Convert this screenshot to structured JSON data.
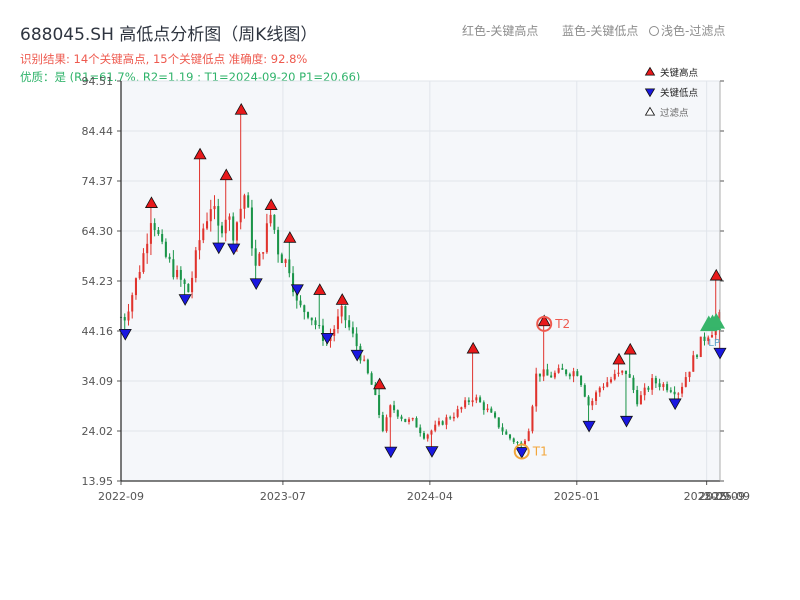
{
  "title": "688045.SH 高低点分析图（周K线图）",
  "header_legend": {
    "red": "红色-关键高点",
    "blue": "蓝色-关键低点",
    "light": "浅色-过滤点"
  },
  "summary": "识别结果: 14个关键高点, 15个关键低点  准确度: 92.8%",
  "quality": "优质：是  (R1=61.7%, R2=1.19 ; T1=2024-09-20 P1=20.66)",
  "legend": {
    "high": "关键高点",
    "low": "关键低点",
    "filtered": "过滤点"
  },
  "colors": {
    "up": "#e0332d",
    "down": "#1a9448",
    "high_marker": "#e8191b",
    "low_marker": "#1a18e0",
    "t2_ring": "#ee5a4f",
    "t1_ring": "#f2a63b",
    "filtered_marker": "#37b56a",
    "plot_bg": "#f5f7fa",
    "grid": "#e1e5eb"
  },
  "chart_data": {
    "type": "candlestick",
    "title": "688045.SH 高低点分析图（周K线图）",
    "y_ticks": [
      13.95,
      24.02,
      34.09,
      44.16,
      54.23,
      64.3,
      74.37,
      84.44,
      94.51
    ],
    "ylim": [
      13.95,
      94.51
    ],
    "x_ticks": [
      "2022-09",
      "2023-07",
      "2024-04",
      "2025-01",
      "2025-09"
    ],
    "x_range": [
      "2022-09-01",
      "2025-09-26"
    ],
    "x_ticks_overlap_labels": [
      "2025-09",
      "2025-09"
    ],
    "grid": true,
    "legend_position": "top-right",
    "price_path": [
      [
        "2022-09-02",
        45
      ],
      [
        "2022-09-23",
        52
      ],
      [
        "2022-10-14",
        60
      ],
      [
        "2022-10-28",
        68
      ],
      [
        "2022-11-18",
        60
      ],
      [
        "2022-12-16",
        55
      ],
      [
        "2023-01-06",
        52
      ],
      [
        "2023-01-27",
        63
      ],
      [
        "2023-02-17",
        70
      ],
      [
        "2023-03-03",
        64
      ],
      [
        "2023-03-17",
        68
      ],
      [
        "2023-03-31",
        64
      ],
      [
        "2023-04-21",
        72
      ],
      [
        "2023-05-12",
        56
      ],
      [
        "2023-06-09",
        68
      ],
      [
        "2023-06-23",
        60
      ],
      [
        "2023-07-14",
        57
      ],
      [
        "2023-07-28",
        49
      ],
      [
        "2023-08-18",
        48
      ],
      [
        "2023-09-08",
        44
      ],
      [
        "2023-09-22",
        42
      ],
      [
        "2023-10-20",
        48
      ],
      [
        "2023-11-17",
        41
      ],
      [
        "2023-12-15",
        33
      ],
      [
        "2024-01-05",
        24
      ],
      [
        "2024-01-19",
        29
      ],
      [
        "2024-02-16",
        26
      ],
      [
        "2024-03-01",
        26
      ],
      [
        "2024-03-22",
        23
      ],
      [
        "2024-04-26",
        26
      ],
      [
        "2024-05-24",
        28
      ],
      [
        "2024-06-21",
        31
      ],
      [
        "2024-07-19",
        28
      ],
      [
        "2024-08-23",
        23
      ],
      [
        "2024-09-20",
        21
      ],
      [
        "2024-10-04",
        25
      ],
      [
        "2024-10-18",
        36
      ],
      [
        "2024-11-08",
        35
      ],
      [
        "2024-12-06",
        36
      ],
      [
        "2025-01-03",
        36
      ],
      [
        "2025-01-24",
        29
      ],
      [
        "2025-02-14",
        33
      ],
      [
        "2025-03-14",
        35
      ],
      [
        "2025-04-04",
        36
      ],
      [
        "2025-04-25",
        30
      ],
      [
        "2025-05-23",
        34
      ],
      [
        "2025-06-20",
        33
      ],
      [
        "2025-07-11",
        32
      ],
      [
        "2025-08-01",
        37
      ],
      [
        "2025-08-22",
        42
      ],
      [
        "2025-09-05",
        44
      ],
      [
        "2025-09-19",
        45
      ],
      [
        "2025-09-26",
        47
      ]
    ],
    "key_highs": [
      {
        "date": "2022-10-28",
        "price": 69.0
      },
      {
        "date": "2023-01-27",
        "price": 78.8
      },
      {
        "date": "2023-03-17",
        "price": 74.6
      },
      {
        "date": "2023-04-14",
        "price": 87.8
      },
      {
        "date": "2023-06-09",
        "price": 68.6
      },
      {
        "date": "2023-07-14",
        "price": 62.0
      },
      {
        "date": "2023-09-08",
        "price": 51.5
      },
      {
        "date": "2023-10-20",
        "price": 49.5
      },
      {
        "date": "2023-12-29",
        "price": 32.5
      },
      {
        "date": "2024-06-21",
        "price": 39.7
      },
      {
        "date": "2024-11-01",
        "price": 45.2
      },
      {
        "date": "2025-03-21",
        "price": 37.5
      },
      {
        "date": "2025-04-11",
        "price": 39.5
      },
      {
        "date": "2025-09-19",
        "price": 54.4
      }
    ],
    "key_lows": [
      {
        "date": "2022-09-09",
        "price": 44.5
      },
      {
        "date": "2022-12-30",
        "price": 51.5
      },
      {
        "date": "2023-03-03",
        "price": 61.9
      },
      {
        "date": "2023-03-31",
        "price": 61.7
      },
      {
        "date": "2023-05-12",
        "price": 54.7
      },
      {
        "date": "2023-07-28",
        "price": 53.5
      },
      {
        "date": "2023-09-22",
        "price": 43.7
      },
      {
        "date": "2023-11-17",
        "price": 40.3
      },
      {
        "date": "2024-01-19",
        "price": 20.8
      },
      {
        "date": "2024-04-05",
        "price": 20.9
      },
      {
        "date": "2024-09-20",
        "price": 20.7
      },
      {
        "date": "2025-01-24",
        "price": 26.0
      },
      {
        "date": "2025-04-04",
        "price": 27.0
      },
      {
        "date": "2025-07-04",
        "price": 30.5
      },
      {
        "date": "2025-09-26",
        "price": 40.7
      }
    ],
    "filtered_points": [
      {
        "date": "2025-09-05",
        "price": 45.3
      },
      {
        "date": "2025-09-12",
        "price": 45.5
      },
      {
        "date": "2025-09-19",
        "price": 45.8
      }
    ],
    "annotations": [
      {
        "label": "T2",
        "date": "2024-11-01",
        "price": 45.2
      },
      {
        "label": "T1",
        "date": "2024-09-20",
        "price": 20.7
      },
      {
        "label": "LP",
        "date": "2025-09-19",
        "price": 41.9
      }
    ]
  }
}
